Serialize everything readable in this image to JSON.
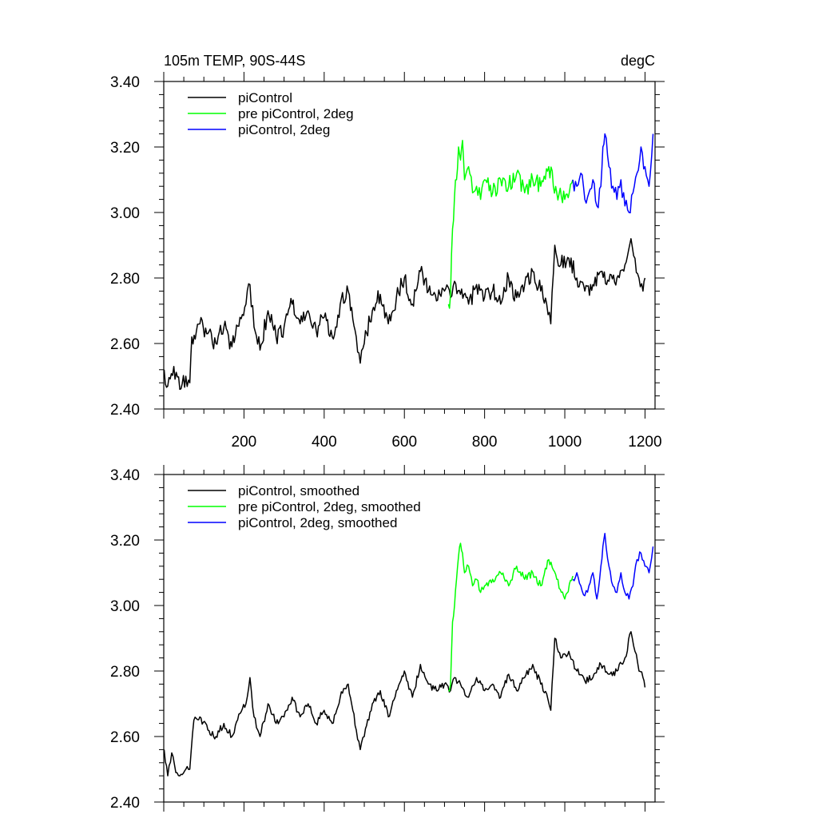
{
  "chart_data": [
    {
      "type": "line",
      "title_left": "105m TEMP, 90S-44S",
      "title_right": "degC",
      "xlim": [
        0,
        1225
      ],
      "ylim": [
        2.4,
        3.4
      ],
      "x_ticks": [
        200,
        400,
        600,
        800,
        1000,
        1200
      ],
      "x_tick_labels": [
        "200",
        "400",
        "600",
        "800",
        "1000",
        "1200"
      ],
      "y_ticks": [
        2.4,
        2.6,
        2.8,
        3.0,
        3.2,
        3.4
      ],
      "y_tick_labels": [
        "2.40",
        "2.60",
        "2.80",
        "3.00",
        "3.20",
        "3.40"
      ],
      "legend_position": "top-left",
      "series": [
        {
          "name": "piControl",
          "color": "#000000",
          "x": [
            1,
            10,
            25,
            40,
            55,
            65,
            70,
            90,
            110,
            130,
            150,
            170,
            190,
            205,
            215,
            225,
            240,
            260,
            280,
            300,
            320,
            340,
            360,
            380,
            400,
            420,
            440,
            460,
            480,
            490,
            500,
            520,
            540,
            560,
            580,
            600,
            620,
            640,
            660,
            680,
            700,
            715,
            725,
            740,
            760,
            780,
            800,
            820,
            840,
            860,
            880,
            900,
            920,
            940,
            955,
            965,
            975,
            990,
            1010,
            1030,
            1050,
            1070,
            1090,
            1110,
            1130,
            1150,
            1165,
            1175,
            1185,
            1195,
            1200
          ],
          "y": [
            2.52,
            2.47,
            2.53,
            2.46,
            2.5,
            2.48,
            2.62,
            2.66,
            2.63,
            2.6,
            2.65,
            2.59,
            2.68,
            2.72,
            2.78,
            2.65,
            2.58,
            2.7,
            2.62,
            2.65,
            2.72,
            2.66,
            2.7,
            2.64,
            2.68,
            2.62,
            2.72,
            2.76,
            2.62,
            2.54,
            2.6,
            2.7,
            2.75,
            2.66,
            2.74,
            2.8,
            2.72,
            2.82,
            2.76,
            2.73,
            2.76,
            2.74,
            2.79,
            2.75,
            2.72,
            2.78,
            2.74,
            2.76,
            2.72,
            2.8,
            2.74,
            2.78,
            2.82,
            2.76,
            2.72,
            2.66,
            2.9,
            2.84,
            2.86,
            2.8,
            2.76,
            2.78,
            2.82,
            2.79,
            2.8,
            2.84,
            2.92,
            2.86,
            2.8,
            2.76,
            2.8
          ]
        },
        {
          "name": "pre piControl, 2deg",
          "color": "#00ff00",
          "x": [
            710,
            715,
            720,
            725,
            730,
            735,
            740,
            745,
            750,
            760,
            770,
            780,
            790,
            800,
            820,
            840,
            860,
            880,
            900,
            920,
            940,
            960,
            980,
            1000,
            1020
          ],
          "y": [
            2.72,
            2.75,
            2.95,
            3.05,
            3.1,
            3.2,
            3.16,
            3.22,
            3.1,
            3.14,
            3.06,
            3.08,
            3.04,
            3.1,
            3.06,
            3.1,
            3.08,
            3.12,
            3.06,
            3.1,
            3.08,
            3.14,
            3.06,
            3.04,
            3.1
          ]
        },
        {
          "name": "piControl, 2deg",
          "color": "#0000ff",
          "x": [
            1020,
            1030,
            1040,
            1050,
            1060,
            1070,
            1080,
            1090,
            1095,
            1100,
            1110,
            1120,
            1130,
            1140,
            1150,
            1160,
            1170,
            1180,
            1190,
            1200,
            1210,
            1220
          ],
          "y": [
            3.1,
            3.08,
            3.12,
            3.04,
            3.06,
            3.1,
            3.02,
            3.08,
            3.2,
            3.24,
            3.14,
            3.08,
            3.04,
            3.1,
            3.02,
            3.0,
            3.06,
            3.12,
            3.2,
            3.14,
            3.08,
            3.24
          ]
        }
      ]
    },
    {
      "type": "line",
      "xlim": [
        0,
        1225
      ],
      "ylim": [
        2.4,
        3.4
      ],
      "x_ticks": [
        200,
        400,
        600,
        800,
        1000,
        1200
      ],
      "y_ticks": [
        2.4,
        2.6,
        2.8,
        3.0,
        3.2,
        3.4
      ],
      "y_tick_labels": [
        "2.40",
        "2.60",
        "2.80",
        "3.00",
        "3.20",
        "3.40"
      ],
      "legend_position": "top-left",
      "series": [
        {
          "name": "piControl, smoothed",
          "color": "#000000",
          "x": [
            1,
            10,
            20,
            30,
            40,
            55,
            65,
            75,
            90,
            110,
            130,
            150,
            170,
            190,
            205,
            215,
            225,
            240,
            260,
            280,
            300,
            320,
            340,
            360,
            380,
            400,
            420,
            440,
            460,
            480,
            490,
            500,
            520,
            540,
            560,
            580,
            600,
            620,
            640,
            660,
            680,
            700,
            715,
            725,
            740,
            760,
            780,
            800,
            820,
            840,
            860,
            880,
            900,
            920,
            940,
            955,
            965,
            975,
            990,
            1010,
            1030,
            1050,
            1070,
            1090,
            1110,
            1130,
            1150,
            1165,
            1175,
            1185,
            1195,
            1200
          ],
          "y": [
            2.56,
            2.48,
            2.55,
            2.49,
            2.48,
            2.5,
            2.5,
            2.65,
            2.66,
            2.62,
            2.6,
            2.64,
            2.6,
            2.67,
            2.7,
            2.78,
            2.66,
            2.6,
            2.7,
            2.64,
            2.66,
            2.72,
            2.66,
            2.7,
            2.64,
            2.68,
            2.64,
            2.72,
            2.76,
            2.62,
            2.56,
            2.6,
            2.7,
            2.74,
            2.66,
            2.74,
            2.8,
            2.72,
            2.82,
            2.76,
            2.74,
            2.76,
            2.74,
            2.78,
            2.76,
            2.72,
            2.78,
            2.74,
            2.76,
            2.72,
            2.79,
            2.74,
            2.78,
            2.82,
            2.76,
            2.73,
            2.68,
            2.9,
            2.84,
            2.86,
            2.8,
            2.77,
            2.78,
            2.82,
            2.79,
            2.8,
            2.84,
            2.92,
            2.86,
            2.8,
            2.78,
            2.75
          ]
        },
        {
          "name": "pre piControl, 2deg, smoothed",
          "color": "#00ff00",
          "x": [
            710,
            715,
            720,
            725,
            730,
            735,
            740,
            745,
            750,
            760,
            770,
            780,
            790,
            800,
            820,
            840,
            860,
            880,
            900,
            920,
            940,
            960,
            980,
            1000,
            1020
          ],
          "y": [
            2.74,
            2.76,
            2.95,
            3.0,
            3.08,
            3.15,
            3.19,
            3.16,
            3.1,
            3.12,
            3.06,
            3.08,
            3.04,
            3.06,
            3.08,
            3.1,
            3.06,
            3.12,
            3.08,
            3.1,
            3.06,
            3.14,
            3.08,
            3.02,
            3.09
          ]
        },
        {
          "name": "piControl, 2deg, smoothed",
          "color": "#0000ff",
          "x": [
            1020,
            1030,
            1040,
            1050,
            1060,
            1070,
            1080,
            1090,
            1095,
            1100,
            1110,
            1120,
            1130,
            1140,
            1150,
            1160,
            1170,
            1180,
            1190,
            1200,
            1210,
            1220
          ],
          "y": [
            3.08,
            3.1,
            3.06,
            3.03,
            3.06,
            3.1,
            3.02,
            3.12,
            3.18,
            3.22,
            3.12,
            3.06,
            3.04,
            3.1,
            3.04,
            3.02,
            3.06,
            3.14,
            3.16,
            3.12,
            3.1,
            3.18
          ]
        }
      ]
    }
  ]
}
